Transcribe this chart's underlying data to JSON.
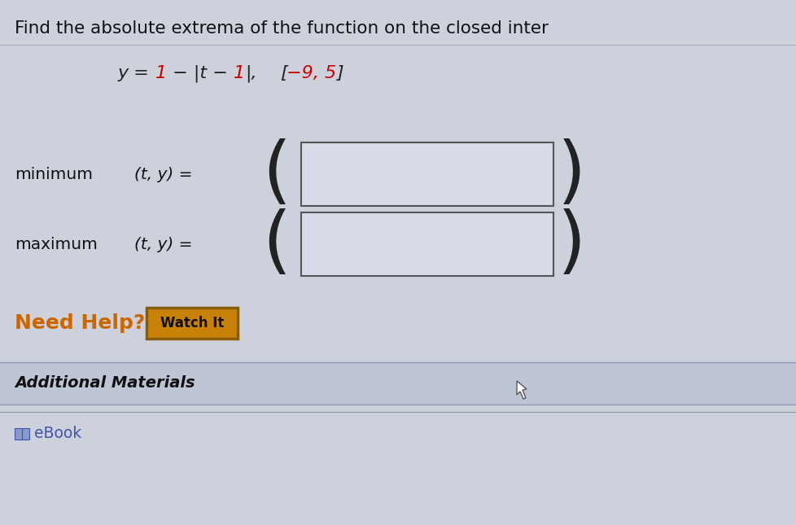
{
  "title_text": "Find the absolute extrema of the function on the closed inter",
  "min_label": "minimum",
  "max_label": "maximum",
  "need_help_text": "Need Help?",
  "watch_it_text": "Watch It",
  "additional_text": "Additional Materials",
  "ebook_text": "eBook",
  "bg_color": "#cdd1dc",
  "box_fill": "#d8dce6",
  "box_edge": "#555555",
  "red_color": "#cc0000",
  "orange_btn_bg": "#c8820a",
  "orange_btn_border": "#8a5c00",
  "need_help_color": "#cc6600",
  "additional_bg": "#bec5d4",
  "additional_border": "#aab0c0",
  "ebook_color": "#4455aa",
  "title_color": "#111111",
  "text_color": "#111111",
  "watch_text_color": "#111111",
  "fig_width": 9.79,
  "fig_height": 6.45,
  "dpi": 100
}
